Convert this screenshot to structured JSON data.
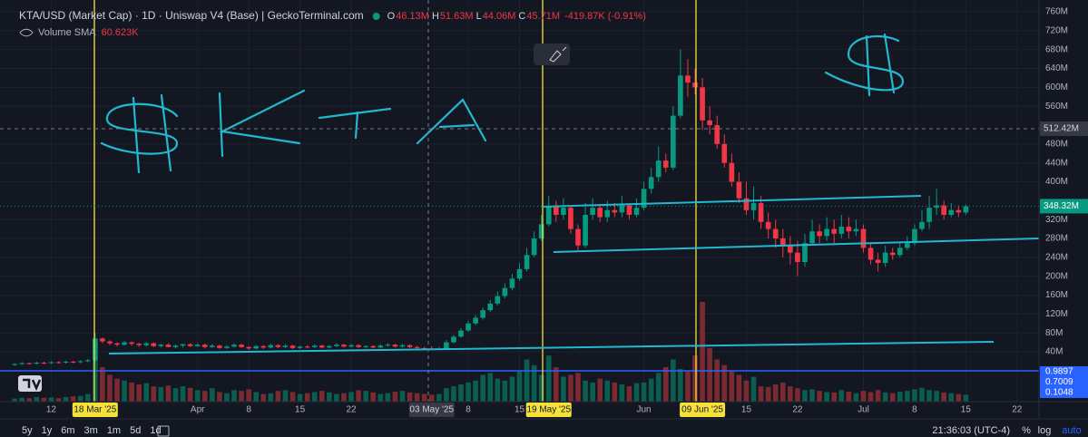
{
  "chart_data": {
    "type": "candlestick",
    "title": "KTA/USD (Market Cap) · 1D · Uniswap V4 (Base) | GeckoTerminal.com",
    "legend": [
      {
        "label": "O",
        "value": "46.13M"
      },
      {
        "label": "H",
        "value": "51.63M"
      },
      {
        "label": "L",
        "value": "44.06M"
      },
      {
        "label": "C",
        "value": "45.71M"
      }
    ],
    "change": "-419.87K (-0.91%)",
    "volume_title": "Volume SMA",
    "volume_sma": "60.623K",
    "up_color": "#089981",
    "down_color": "#f23645",
    "x": [
      "2025-03-07",
      "2025-03-08",
      "2025-03-09",
      "2025-03-10",
      "2025-03-11",
      "2025-03-12",
      "2025-03-13",
      "2025-03-14",
      "2025-03-15",
      "2025-03-16",
      "2025-03-17",
      "2025-03-18",
      "2025-03-19",
      "2025-03-20",
      "2025-03-21",
      "2025-03-22",
      "2025-03-23",
      "2025-03-24",
      "2025-03-25",
      "2025-03-26",
      "2025-03-27",
      "2025-03-28",
      "2025-03-29",
      "2025-03-30",
      "2025-03-31",
      "2025-04-01",
      "2025-04-02",
      "2025-04-03",
      "2025-04-04",
      "2025-04-05",
      "2025-04-06",
      "2025-04-07",
      "2025-04-08",
      "2025-04-09",
      "2025-04-10",
      "2025-04-11",
      "2025-04-12",
      "2025-04-13",
      "2025-04-14",
      "2025-04-15",
      "2025-04-16",
      "2025-04-17",
      "2025-04-18",
      "2025-04-19",
      "2025-04-20",
      "2025-04-21",
      "2025-04-22",
      "2025-04-23",
      "2025-04-24",
      "2025-04-25",
      "2025-04-26",
      "2025-04-27",
      "2025-04-28",
      "2025-04-29",
      "2025-04-30",
      "2025-05-01",
      "2025-05-02",
      "2025-05-03",
      "2025-05-04",
      "2025-05-05",
      "2025-05-06",
      "2025-05-07",
      "2025-05-08",
      "2025-05-09",
      "2025-05-10",
      "2025-05-11",
      "2025-05-12",
      "2025-05-13",
      "2025-05-14",
      "2025-05-15",
      "2025-05-16",
      "2025-05-17",
      "2025-05-18",
      "2025-05-19",
      "2025-05-20",
      "2025-05-21",
      "2025-05-22",
      "2025-05-23",
      "2025-05-24",
      "2025-05-25",
      "2025-05-26",
      "2025-05-27",
      "2025-05-28",
      "2025-05-29",
      "2025-05-30",
      "2025-05-31",
      "2025-06-01",
      "2025-06-02",
      "2025-06-03",
      "2025-06-04",
      "2025-06-05",
      "2025-06-06",
      "2025-06-07",
      "2025-06-08",
      "2025-06-09",
      "2025-06-10",
      "2025-06-11",
      "2025-06-12",
      "2025-06-13",
      "2025-06-14",
      "2025-06-15",
      "2025-06-16",
      "2025-06-17",
      "2025-06-18",
      "2025-06-19",
      "2025-06-20",
      "2025-06-21",
      "2025-06-22",
      "2025-06-23",
      "2025-06-24",
      "2025-06-25",
      "2025-06-26",
      "2025-06-27",
      "2025-06-28",
      "2025-06-29",
      "2025-06-30",
      "2025-07-01",
      "2025-07-02",
      "2025-07-03",
      "2025-07-04",
      "2025-07-05",
      "2025-07-06",
      "2025-07-07",
      "2025-07-08",
      "2025-07-09",
      "2025-07-10",
      "2025-07-11",
      "2025-07-12",
      "2025-07-13",
      "2025-07-14",
      "2025-07-15"
    ],
    "open": [
      12,
      14,
      16,
      15,
      17,
      16,
      18,
      17,
      19,
      18,
      20,
      22,
      68,
      62,
      58,
      55,
      60,
      57,
      54,
      58,
      52,
      55,
      50,
      53,
      56,
      52,
      55,
      50,
      53,
      48,
      51,
      55,
      50,
      47,
      52,
      49,
      54,
      50,
      53,
      48,
      51,
      50,
      53,
      49,
      52,
      55,
      51,
      54,
      50,
      52,
      49,
      53,
      55,
      51,
      54,
      50,
      48,
      46.13,
      45.71,
      47,
      60,
      72,
      85,
      100,
      112,
      128,
      142,
      158,
      175,
      195,
      215,
      245,
      280,
      310,
      348,
      330,
      345,
      300,
      265,
      330,
      345,
      325,
      340,
      335,
      350,
      330,
      345,
      385,
      410,
      445,
      430,
      540,
      625,
      610,
      600,
      530,
      520,
      480,
      440,
      400,
      365,
      340,
      355,
      315,
      300,
      280,
      265,
      250,
      230,
      270,
      295,
      285,
      300,
      290,
      305,
      295,
      300,
      260,
      235,
      228,
      250,
      245,
      260,
      270,
      300,
      315,
      345,
      350,
      330,
      340,
      335
    ],
    "high": [
      16,
      18,
      17,
      19,
      19,
      20,
      20,
      21,
      21,
      22,
      25,
      80,
      70,
      64,
      60,
      63,
      62,
      59,
      61,
      60,
      57,
      58,
      55,
      57,
      58,
      58,
      57,
      56,
      55,
      54,
      58,
      57,
      52,
      54,
      54,
      57,
      56,
      56,
      55,
      53,
      54,
      56,
      55,
      54,
      58,
      57,
      57,
      56,
      54,
      54,
      56,
      58,
      57,
      57,
      56,
      53,
      50,
      51.63,
      50,
      65,
      76,
      90,
      106,
      118,
      134,
      150,
      168,
      185,
      205,
      228,
      260,
      295,
      330,
      370,
      360,
      365,
      350,
      310,
      355,
      365,
      350,
      360,
      355,
      370,
      355,
      365,
      400,
      430,
      475,
      460,
      560,
      680,
      660,
      640,
      620,
      560,
      540,
      500,
      460,
      420,
      400,
      390,
      370,
      335,
      320,
      300,
      285,
      275,
      290,
      320,
      310,
      325,
      320,
      330,
      325,
      320,
      310,
      270,
      250,
      265,
      260,
      270,
      285,
      310,
      340,
      370,
      385,
      360,
      355,
      350,
      352
    ],
    "low": [
      10,
      12,
      13,
      13,
      14,
      14,
      15,
      15,
      16,
      16,
      18,
      20,
      58,
      54,
      51,
      53,
      53,
      50,
      51,
      50,
      49,
      50,
      47,
      49,
      50,
      50,
      47,
      48,
      46,
      46,
      49,
      48,
      44,
      45,
      46,
      47,
      48,
      48,
      46,
      46,
      47,
      48,
      47,
      47,
      50,
      49,
      49,
      48,
      48,
      47,
      48,
      51,
      49,
      49,
      48,
      46,
      44,
      44.06,
      44,
      45,
      58,
      70,
      83,
      96,
      108,
      124,
      138,
      153,
      170,
      190,
      210,
      240,
      275,
      305,
      315,
      320,
      290,
      255,
      260,
      320,
      315,
      315,
      325,
      325,
      320,
      325,
      340,
      375,
      400,
      420,
      425,
      535,
      580,
      585,
      510,
      500,
      470,
      430,
      390,
      355,
      330,
      320,
      300,
      280,
      260,
      240,
      225,
      200,
      220,
      265,
      270,
      275,
      270,
      280,
      280,
      285,
      250,
      225,
      210,
      220,
      235,
      240,
      255,
      265,
      295,
      300,
      330,
      320,
      325,
      325,
      330
    ],
    "close": [
      14,
      16,
      15,
      17,
      16,
      18,
      17,
      19,
      18,
      20,
      22,
      68,
      62,
      58,
      55,
      60,
      57,
      54,
      58,
      52,
      55,
      50,
      53,
      56,
      52,
      55,
      50,
      53,
      48,
      51,
      55,
      50,
      47,
      52,
      49,
      54,
      50,
      53,
      48,
      51,
      50,
      53,
      49,
      52,
      55,
      51,
      54,
      50,
      52,
      49,
      53,
      55,
      51,
      54,
      50,
      48,
      46.13,
      45.71,
      47,
      60,
      72,
      85,
      100,
      112,
      128,
      142,
      158,
      175,
      195,
      215,
      245,
      280,
      310,
      348,
      330,
      345,
      300,
      265,
      330,
      345,
      325,
      340,
      335,
      350,
      330,
      345,
      385,
      410,
      445,
      430,
      540,
      625,
      610,
      600,
      530,
      520,
      480,
      440,
      400,
      365,
      340,
      355,
      315,
      300,
      280,
      265,
      250,
      230,
      270,
      295,
      285,
      300,
      290,
      305,
      295,
      300,
      260,
      235,
      228,
      250,
      245,
      260,
      270,
      300,
      315,
      345,
      350,
      330,
      340,
      335,
      348.32
    ],
    "volume": [
      8,
      10,
      9,
      12,
      10,
      11,
      9,
      12,
      14,
      15,
      20,
      120,
      90,
      70,
      60,
      55,
      50,
      45,
      48,
      40,
      38,
      42,
      35,
      40,
      36,
      30,
      28,
      35,
      25,
      22,
      30,
      28,
      32,
      25,
      20,
      22,
      28,
      30,
      25,
      20,
      22,
      25,
      28,
      24,
      20,
      22,
      25,
      30,
      28,
      24,
      20,
      22,
      26,
      28,
      24,
      22,
      20,
      18,
      20,
      35,
      40,
      45,
      50,
      55,
      70,
      75,
      60,
      55,
      65,
      80,
      110,
      95,
      70,
      120,
      90,
      65,
      70,
      75,
      55,
      50,
      60,
      55,
      50,
      45,
      40,
      48,
      50,
      60,
      75,
      90,
      110,
      85,
      80,
      120,
      260,
      140,
      110,
      95,
      80,
      70,
      55,
      65,
      40,
      38,
      45,
      50,
      40,
      35,
      30,
      32,
      28,
      25,
      24,
      30,
      26,
      22,
      28,
      25,
      30,
      24,
      22,
      26,
      28,
      32,
      36,
      30,
      28,
      24,
      22,
      20,
      18
    ],
    "xlim": [
      "2025-03-05",
      "2025-07-25"
    ],
    "xticks": [
      {
        "value": "2025-03-12",
        "label": "12"
      },
      {
        "value": "2025-04-01",
        "label": "Apr"
      },
      {
        "value": "2025-04-08",
        "label": "8"
      },
      {
        "value": "2025-04-15",
        "label": "15"
      },
      {
        "value": "2025-04-22",
        "label": "22"
      },
      {
        "value": "2025-05-08",
        "label": "8"
      },
      {
        "value": "2025-05-15",
        "label": "15"
      },
      {
        "value": "2025-06-01",
        "label": "Jun"
      },
      {
        "value": "2025-06-15",
        "label": "15"
      },
      {
        "value": "2025-06-22",
        "label": "22"
      },
      {
        "value": "2025-07-01",
        "label": "Jul"
      },
      {
        "value": "2025-07-08",
        "label": "8"
      },
      {
        "value": "2025-07-15",
        "label": "15"
      },
      {
        "value": "2025-07-22",
        "label": "22"
      }
    ],
    "highlighted_dates": [
      {
        "value": "2025-03-18",
        "label": "18 Mar '25"
      },
      {
        "value": "2025-05-03",
        "label": "03 May '25"
      },
      {
        "value": "2025-05-19",
        "label": "19 May '25"
      },
      {
        "value": "2025-06-09",
        "label": "09 Jun '25"
      }
    ],
    "ylim": [
      -65.6,
      785
    ],
    "yticks": [
      {
        "value": 760,
        "label": "760M"
      },
      {
        "value": 720,
        "label": "720M"
      },
      {
        "value": 680,
        "label": "680M"
      },
      {
        "value": 640,
        "label": "640M"
      },
      {
        "value": 600,
        "label": "600M"
      },
      {
        "value": 560,
        "label": "560M"
      },
      {
        "value": 480,
        "label": "480M"
      },
      {
        "value": 440,
        "label": "440M"
      },
      {
        "value": 400,
        "label": "400M"
      },
      {
        "value": 320,
        "label": "320M"
      },
      {
        "value": 280,
        "label": "280M"
      },
      {
        "value": 240,
        "label": "240M"
      },
      {
        "value": 200,
        "label": "200M"
      },
      {
        "value": 160,
        "label": "160M"
      },
      {
        "value": 120,
        "label": "120M"
      },
      {
        "value": 80,
        "label": "80M"
      },
      {
        "value": 40,
        "label": "40M"
      }
    ],
    "grid": true,
    "crosshair": {
      "value": 512.42,
      "label": "512.42M"
    },
    "last_price": {
      "value": 348.32,
      "label": "348.32M"
    },
    "indicator_labels": [
      "0.9897",
      "0.7009",
      "0.1048"
    ],
    "ranges": [
      "5y",
      "1y",
      "6m",
      "3m",
      "1m",
      "5d",
      "1d"
    ],
    "clock": "21:36:03 (UTC-4)",
    "scale_options": [
      "%",
      "log",
      "auto"
    ]
  }
}
